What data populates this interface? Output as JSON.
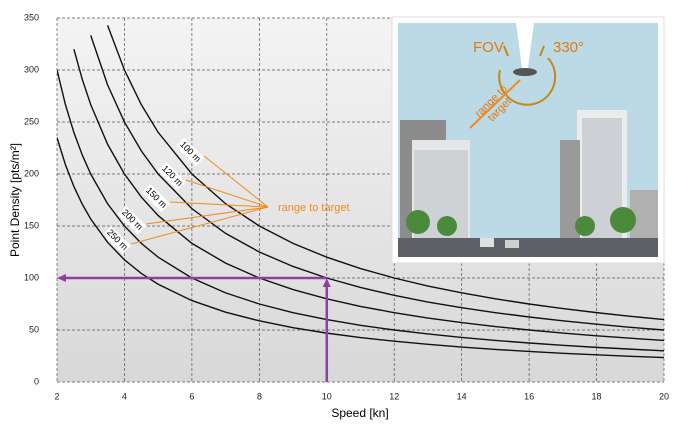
{
  "chart_data": {
    "type": "line",
    "x_label": "Speed [kn]",
    "y_label": "Point Density [pts/m²]",
    "annotation": "range to target",
    "x": [
      2,
      2.25,
      2.5,
      2.75,
      3,
      3.5,
      4,
      4.5,
      5,
      6,
      7,
      8,
      9,
      10,
      11,
      12,
      13,
      14,
      15,
      16,
      17,
      18,
      19,
      20
    ],
    "series": [
      {
        "name": "100 m",
        "color": "#111111",
        "values": [
          null,
          null,
          null,
          null,
          null,
          342.9,
          300,
          266.7,
          240,
          200,
          171.4,
          150,
          133.3,
          120,
          109.1,
          100,
          92.3,
          85.7,
          80,
          75,
          70.6,
          66.7,
          63.2,
          60
        ]
      },
      {
        "name": "120 m",
        "color": "#111111",
        "values": [
          null,
          null,
          null,
          null,
          333.3,
          285.7,
          250,
          222.2,
          200,
          166.7,
          142.9,
          125,
          111.1,
          100,
          90.9,
          83.3,
          76.9,
          71.4,
          66.7,
          62.5,
          58.8,
          55.6,
          52.6,
          50
        ]
      },
      {
        "name": "150 m",
        "color": "#111111",
        "values": [
          null,
          null,
          320,
          290.9,
          266.7,
          228.6,
          200,
          177.8,
          160,
          133.3,
          114.3,
          100,
          88.9,
          80,
          72.7,
          66.7,
          61.5,
          57.1,
          53.3,
          50,
          47.1,
          44.4,
          42.1,
          40
        ]
      },
      {
        "name": "200 m",
        "color": "#111111",
        "values": [
          300,
          266.7,
          240,
          218.2,
          200,
          171.4,
          150,
          133.3,
          120,
          100,
          85.7,
          75,
          66.7,
          60,
          54.5,
          50,
          46.2,
          42.9,
          40,
          37.5,
          35.3,
          33.3,
          31.6,
          30
        ]
      },
      {
        "name": "250 m",
        "color": "#111111",
        "values": [
          235,
          208.9,
          188,
          170.9,
          156.7,
          134.3,
          117.5,
          104.4,
          94,
          78.3,
          67.1,
          58.8,
          52.2,
          47,
          42.7,
          39.2,
          36.2,
          33.6,
          31.3,
          29.4,
          27.6,
          26.1,
          24.7,
          23.5
        ]
      }
    ],
    "highlight": {
      "x": 10,
      "y": 100,
      "color": "#8e3fa0"
    },
    "xlim": [
      2,
      20
    ],
    "xticks": [
      2,
      4,
      6,
      8,
      10,
      12,
      14,
      16,
      18,
      20
    ],
    "ylim": [
      0,
      350
    ],
    "yticks": [
      0,
      50,
      100,
      150,
      200,
      250,
      300,
      350
    ],
    "grid": true,
    "annotation_color": "#f08a1c",
    "inset": {
      "fov": "FOV",
      "angle": "330°",
      "range_label": [
        "range to",
        "target"
      ]
    }
  }
}
